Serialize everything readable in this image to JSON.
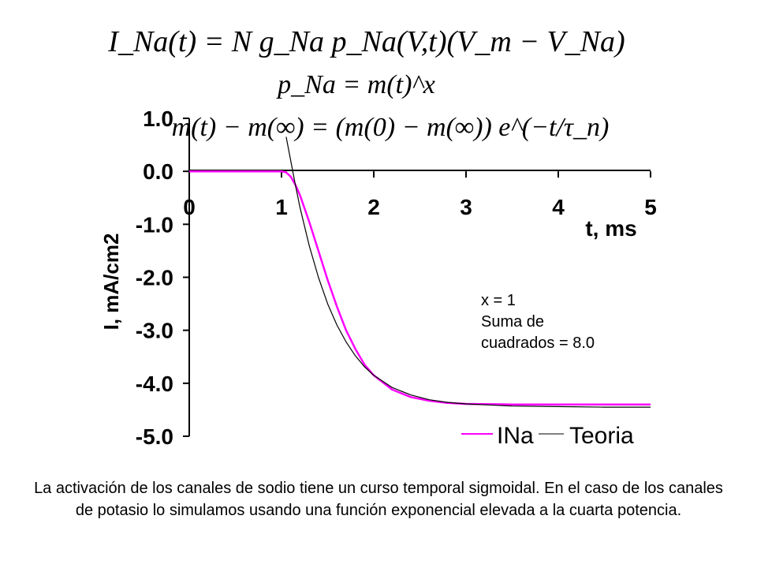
{
  "equations": {
    "current": "I_Na(t) = N g_Na p_Na(V,t)(V_m − V_Na)",
    "probability": "p_Na = m(t)^x",
    "kinetics": "m(t) − m(∞) = (m(0) − m(∞)) e^(−t/τ_n)"
  },
  "annotation": {
    "line1": "x = 1",
    "line2": "Suma de",
    "line3": "cuadrados = 8.0"
  },
  "caption": "La activación de los canales de sodio tiene un curso temporal sigmoidal. En el caso de los canales de potasio lo simulamos usando una función exponencial elevada a la cuarta potencia.",
  "colors": {
    "ina": "#ff00ff",
    "teoria": "#000000"
  },
  "chart_data": {
    "type": "line",
    "xlabel": "t, ms",
    "ylabel": "I, mA/cm2",
    "xlim": [
      0,
      5
    ],
    "ylim": [
      -5.0,
      1.0
    ],
    "xticks": [
      "0",
      "1",
      "2",
      "3",
      "4",
      "5"
    ],
    "yticks": [
      "1.0",
      "0.0",
      "-1.0",
      "-2.0",
      "-3.0",
      "-4.0",
      "-5.0"
    ],
    "legend_position": "bottom-right",
    "series": [
      {
        "name": "INa",
        "x": [
          0,
          0.5,
          1.0,
          1.05,
          1.1,
          1.15,
          1.2,
          1.3,
          1.4,
          1.5,
          1.6,
          1.7,
          1.8,
          1.9,
          2.0,
          2.2,
          2.4,
          2.6,
          2.8,
          3.0,
          3.5,
          4.0,
          4.5,
          5.0
        ],
        "y": [
          0,
          0,
          0,
          -0.02,
          -0.1,
          -0.25,
          -0.45,
          -0.95,
          -1.5,
          -2.05,
          -2.55,
          -3.0,
          -3.35,
          -3.65,
          -3.85,
          -4.12,
          -4.26,
          -4.33,
          -4.37,
          -4.39,
          -4.4,
          -4.4,
          -4.4,
          -4.4
        ]
      },
      {
        "name": "Teoria",
        "x": [
          1.05,
          1.1,
          1.15,
          1.2,
          1.3,
          1.4,
          1.5,
          1.6,
          1.7,
          1.8,
          1.9,
          2.0,
          2.2,
          2.4,
          2.6,
          2.8,
          3.0,
          3.5,
          4.0,
          4.5,
          5.0
        ],
        "y": [
          0.65,
          0.2,
          -0.25,
          -0.68,
          -1.4,
          -2.0,
          -2.5,
          -2.9,
          -3.22,
          -3.48,
          -3.69,
          -3.85,
          -4.08,
          -4.22,
          -4.31,
          -4.36,
          -4.39,
          -4.43,
          -4.44,
          -4.45,
          -4.45
        ]
      }
    ]
  }
}
